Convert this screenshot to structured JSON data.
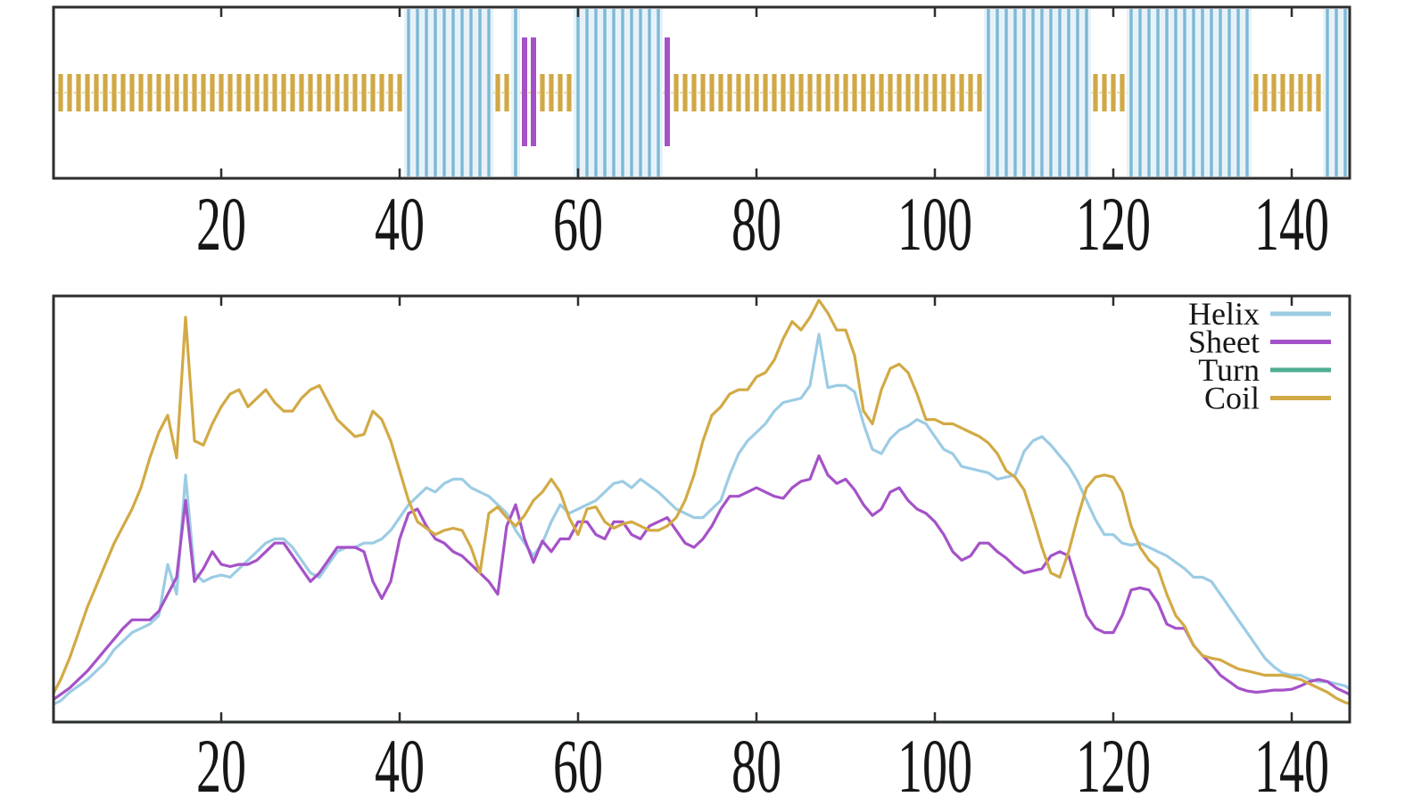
{
  "figure": {
    "background": "#ffffff",
    "axis_color": "#2d2d2d",
    "label_color": "#161616"
  },
  "top_panel": {
    "name": "secondary-structure-track",
    "x_tick_labels": [
      "20",
      "40",
      "60",
      "80",
      "100",
      "120",
      "140"
    ],
    "x_tick_values": [
      20,
      40,
      60,
      80,
      100,
      120,
      140
    ],
    "residue_range": [
      1,
      147
    ],
    "colors": {
      "helix_bar": "#7db8d6",
      "helix_fill": "#e7f2f8",
      "sheet_bar": "#a552c8",
      "coil_bar": "#d0a845",
      "coil_faint_line": "#eadfb0"
    },
    "helix_segments": [
      [
        41,
        50
      ],
      [
        53,
        53
      ],
      [
        60,
        69
      ],
      [
        106,
        117
      ],
      [
        122,
        135
      ],
      [
        144,
        147
      ]
    ],
    "sheet_segments": [
      [
        54,
        55
      ],
      [
        70,
        70
      ]
    ],
    "coil_segments": [
      [
        1,
        40
      ],
      [
        51,
        52
      ],
      [
        56,
        59
      ],
      [
        71,
        105
      ],
      [
        118,
        121
      ],
      [
        136,
        143
      ]
    ]
  },
  "chart_data": {
    "type": "line",
    "title": "",
    "xlabel": "",
    "ylabel": "",
    "x_unit": "residue",
    "x_tick_labels": [
      "20",
      "40",
      "60",
      "80",
      "100",
      "120",
      "140"
    ],
    "x_tick_values": [
      20,
      40,
      60,
      80,
      100,
      120,
      140
    ],
    "x_range": [
      1,
      147
    ],
    "y_range": [
      0,
      1
    ],
    "grid": false,
    "legend_position": "top-right",
    "legend_entries": [
      "Helix",
      "Sheet",
      "Turn",
      "Coil"
    ],
    "series": [
      {
        "name": "Helix",
        "color": "#9ccce4",
        "values": [
          0.04,
          0.05,
          0.07,
          0.085,
          0.1,
          0.12,
          0.14,
          0.17,
          0.19,
          0.21,
          0.22,
          0.23,
          0.25,
          0.37,
          0.3,
          0.58,
          0.35,
          0.33,
          0.34,
          0.345,
          0.34,
          0.36,
          0.38,
          0.4,
          0.42,
          0.43,
          0.43,
          0.41,
          0.38,
          0.35,
          0.34,
          0.37,
          0.4,
          0.41,
          0.41,
          0.42,
          0.42,
          0.43,
          0.45,
          0.48,
          0.51,
          0.53,
          0.55,
          0.54,
          0.56,
          0.57,
          0.57,
          0.55,
          0.54,
          0.53,
          0.51,
          0.49,
          0.45,
          0.42,
          0.39,
          0.42,
          0.47,
          0.51,
          0.49,
          0.5,
          0.51,
          0.52,
          0.54,
          0.56,
          0.565,
          0.55,
          0.57,
          0.555,
          0.54,
          0.52,
          0.5,
          0.49,
          0.48,
          0.48,
          0.5,
          0.52,
          0.58,
          0.63,
          0.66,
          0.68,
          0.7,
          0.73,
          0.75,
          0.755,
          0.76,
          0.79,
          0.91,
          0.785,
          0.79,
          0.79,
          0.775,
          0.7,
          0.64,
          0.63,
          0.665,
          0.685,
          0.695,
          0.71,
          0.7,
          0.67,
          0.64,
          0.63,
          0.6,
          0.595,
          0.59,
          0.585,
          0.57,
          0.575,
          0.58,
          0.635,
          0.66,
          0.67,
          0.65,
          0.625,
          0.6,
          0.565,
          0.52,
          0.475,
          0.44,
          0.44,
          0.42,
          0.415,
          0.42,
          0.41,
          0.4,
          0.39,
          0.375,
          0.36,
          0.34,
          0.34,
          0.33,
          0.3,
          0.27,
          0.24,
          0.21,
          0.18,
          0.15,
          0.13,
          0.115,
          0.11,
          0.11,
          0.1,
          0.095,
          0.095,
          0.09,
          0.085,
          0.07
        ]
      },
      {
        "name": "Sheet",
        "color": "#a552c8",
        "values": [
          0.05,
          0.065,
          0.08,
          0.1,
          0.12,
          0.145,
          0.17,
          0.195,
          0.22,
          0.24,
          0.24,
          0.24,
          0.26,
          0.3,
          0.34,
          0.52,
          0.33,
          0.36,
          0.4,
          0.37,
          0.365,
          0.37,
          0.37,
          0.38,
          0.4,
          0.42,
          0.42,
          0.39,
          0.36,
          0.33,
          0.35,
          0.38,
          0.41,
          0.41,
          0.41,
          0.4,
          0.33,
          0.29,
          0.33,
          0.43,
          0.49,
          0.5,
          0.46,
          0.43,
          0.42,
          0.4,
          0.39,
          0.37,
          0.35,
          0.33,
          0.3,
          0.46,
          0.51,
          0.43,
          0.375,
          0.425,
          0.4,
          0.43,
          0.43,
          0.47,
          0.47,
          0.44,
          0.43,
          0.47,
          0.47,
          0.44,
          0.43,
          0.46,
          0.47,
          0.48,
          0.45,
          0.42,
          0.41,
          0.43,
          0.46,
          0.5,
          0.53,
          0.53,
          0.54,
          0.55,
          0.54,
          0.53,
          0.525,
          0.55,
          0.565,
          0.57,
          0.625,
          0.58,
          0.56,
          0.57,
          0.545,
          0.51,
          0.485,
          0.5,
          0.54,
          0.55,
          0.52,
          0.5,
          0.49,
          0.47,
          0.44,
          0.4,
          0.38,
          0.39,
          0.42,
          0.42,
          0.4,
          0.385,
          0.365,
          0.35,
          0.355,
          0.36,
          0.39,
          0.4,
          0.39,
          0.32,
          0.25,
          0.22,
          0.21,
          0.21,
          0.25,
          0.31,
          0.315,
          0.31,
          0.28,
          0.23,
          0.22,
          0.22,
          0.18,
          0.156,
          0.135,
          0.11,
          0.095,
          0.08,
          0.073,
          0.07,
          0.072,
          0.075,
          0.075,
          0.077,
          0.085,
          0.095,
          0.1,
          0.095,
          0.08,
          0.07,
          0.06
        ]
      },
      {
        "name": "Turn",
        "color": "#4fae92",
        "values": [
          0,
          0,
          0,
          0,
          0,
          0,
          0,
          0,
          0,
          0,
          0,
          0,
          0,
          0,
          0,
          0,
          0,
          0,
          0,
          0,
          0,
          0,
          0,
          0,
          0,
          0,
          0,
          0,
          0,
          0,
          0,
          0,
          0,
          0,
          0,
          0,
          0,
          0,
          0,
          0,
          0,
          0,
          0,
          0,
          0,
          0,
          0,
          0,
          0,
          0,
          0,
          0,
          0,
          0,
          0,
          0,
          0,
          0,
          0,
          0,
          0,
          0,
          0,
          0,
          0,
          0,
          0,
          0,
          0,
          0,
          0,
          0,
          0,
          0,
          0,
          0,
          0,
          0,
          0,
          0,
          0,
          0,
          0,
          0,
          0,
          0,
          0,
          0,
          0,
          0,
          0,
          0,
          0,
          0,
          0,
          0,
          0,
          0,
          0,
          0,
          0,
          0,
          0,
          0,
          0,
          0,
          0,
          0,
          0,
          0,
          0,
          0,
          0,
          0,
          0,
          0,
          0,
          0,
          0,
          0,
          0,
          0,
          0,
          0,
          0,
          0,
          0,
          0,
          0,
          0,
          0,
          0,
          0,
          0,
          0,
          0,
          0,
          0,
          0,
          0,
          0,
          0,
          0,
          0,
          0,
          0,
          0
        ]
      },
      {
        "name": "Coil",
        "color": "#d2aa45",
        "values": [
          0.06,
          0.1,
          0.15,
          0.21,
          0.27,
          0.32,
          0.37,
          0.42,
          0.46,
          0.5,
          0.55,
          0.62,
          0.68,
          0.72,
          0.62,
          0.95,
          0.66,
          0.65,
          0.7,
          0.74,
          0.77,
          0.78,
          0.74,
          0.76,
          0.78,
          0.75,
          0.73,
          0.73,
          0.76,
          0.78,
          0.79,
          0.75,
          0.71,
          0.69,
          0.67,
          0.675,
          0.73,
          0.71,
          0.66,
          0.59,
          0.52,
          0.47,
          0.455,
          0.44,
          0.45,
          0.455,
          0.45,
          0.41,
          0.35,
          0.49,
          0.505,
          0.48,
          0.46,
          0.485,
          0.52,
          0.54,
          0.57,
          0.54,
          0.48,
          0.44,
          0.5,
          0.505,
          0.47,
          0.455,
          0.465,
          0.47,
          0.46,
          0.45,
          0.45,
          0.46,
          0.48,
          0.52,
          0.58,
          0.66,
          0.72,
          0.74,
          0.77,
          0.78,
          0.78,
          0.81,
          0.82,
          0.85,
          0.9,
          0.94,
          0.92,
          0.95,
          0.99,
          0.96,
          0.92,
          0.92,
          0.86,
          0.73,
          0.7,
          0.78,
          0.83,
          0.84,
          0.82,
          0.77,
          0.71,
          0.71,
          0.7,
          0.7,
          0.69,
          0.68,
          0.67,
          0.655,
          0.63,
          0.59,
          0.575,
          0.545,
          0.48,
          0.41,
          0.35,
          0.34,
          0.4,
          0.48,
          0.55,
          0.575,
          0.58,
          0.575,
          0.54,
          0.46,
          0.41,
          0.38,
          0.36,
          0.3,
          0.25,
          0.225,
          0.18,
          0.156,
          0.15,
          0.146,
          0.135,
          0.125,
          0.12,
          0.115,
          0.11,
          0.11,
          0.11,
          0.105,
          0.1,
          0.09,
          0.08,
          0.07,
          0.056,
          0.046,
          0.04
        ]
      }
    ]
  }
}
